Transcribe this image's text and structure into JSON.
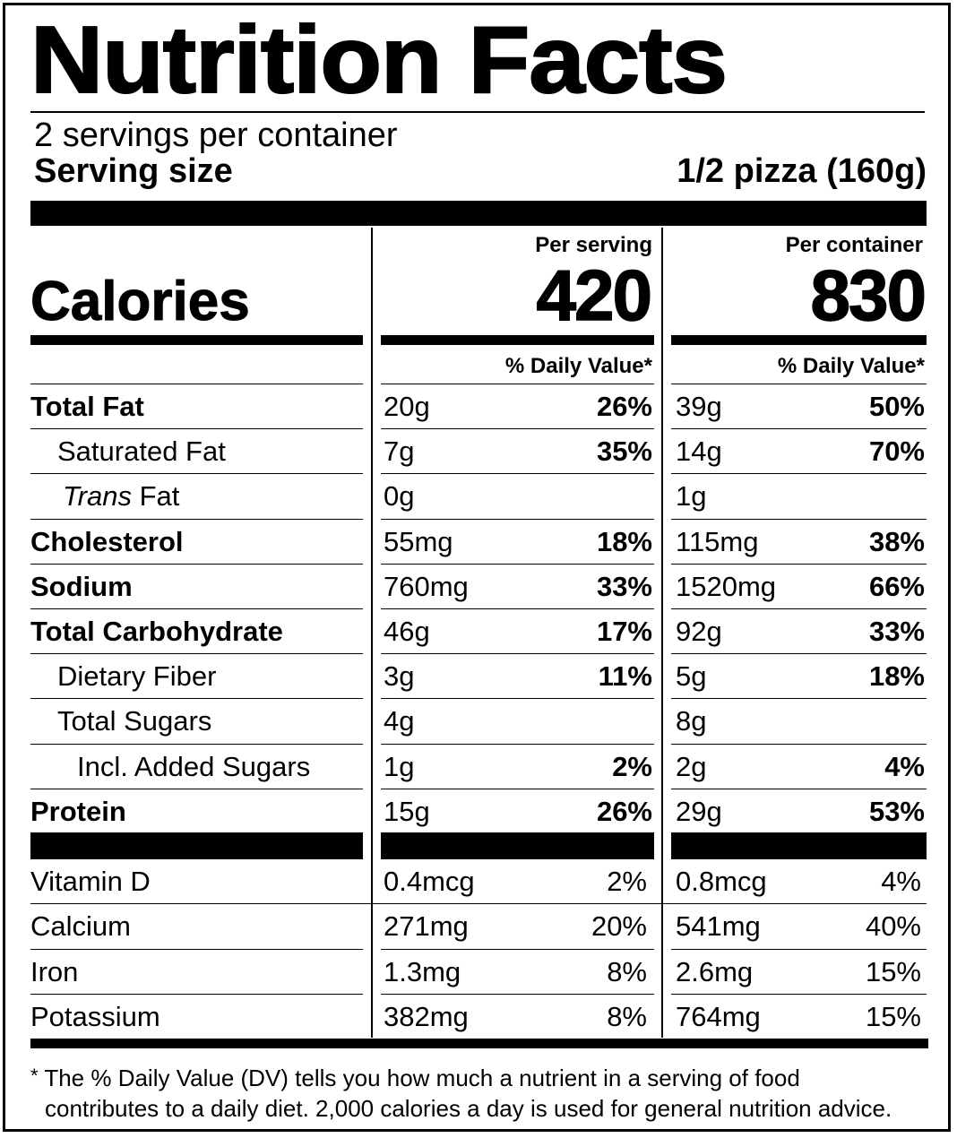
{
  "title": "Nutrition Facts",
  "servings_per_container": "2 servings per container",
  "serving_size_label": "Serving size",
  "serving_size_value": "1/2 pizza (160g)",
  "calories_label": "Calories",
  "per_serving": {
    "header": "Per serving",
    "calories": "420"
  },
  "per_container": {
    "header": "Per container",
    "calories": "830"
  },
  "daily_value_header": "% Daily Value*",
  "nutrients": [
    {
      "name": "Total Fat",
      "bold": true,
      "indent": 0,
      "serving_amount": "20g",
      "serving_dv": "26%",
      "container_amount": "39g",
      "container_dv": "50%"
    },
    {
      "name": "Saturated Fat",
      "bold": false,
      "indent": 1,
      "serving_amount": "7g",
      "serving_dv": "35%",
      "container_amount": "14g",
      "container_dv": "70%"
    },
    {
      "name_italic": "Trans",
      "name": " Fat",
      "bold": false,
      "indent": 1,
      "serving_amount": "0g",
      "serving_dv": "",
      "container_amount": "1g",
      "container_dv": ""
    },
    {
      "name": "Cholesterol",
      "bold": true,
      "indent": 0,
      "serving_amount": "55mg",
      "serving_dv": "18%",
      "container_amount": "115mg",
      "container_dv": "38%"
    },
    {
      "name": "Sodium",
      "bold": true,
      "indent": 0,
      "serving_amount": "760mg",
      "serving_dv": "33%",
      "container_amount": "1520mg",
      "container_dv": "66%"
    },
    {
      "name": "Total Carbohydrate",
      "bold": true,
      "indent": 0,
      "serving_amount": "46g",
      "serving_dv": "17%",
      "container_amount": "92g",
      "container_dv": "33%"
    },
    {
      "name": "Dietary Fiber",
      "bold": false,
      "indent": 1,
      "serving_amount": "3g",
      "serving_dv": "11%",
      "container_amount": "5g",
      "container_dv": "18%"
    },
    {
      "name": "Total Sugars",
      "bold": false,
      "indent": 1,
      "serving_amount": "4g",
      "serving_dv": "",
      "container_amount": "8g",
      "container_dv": ""
    },
    {
      "name": "Incl. Added Sugars",
      "bold": false,
      "indent": 2,
      "serving_amount": "1g",
      "serving_dv": "2%",
      "container_amount": "2g",
      "container_dv": "4%"
    },
    {
      "name": "Protein",
      "bold": true,
      "indent": 0,
      "serving_amount": "15g",
      "serving_dv": "26%",
      "container_amount": "29g",
      "container_dv": "53%"
    }
  ],
  "vitamins": [
    {
      "name": "Vitamin D",
      "serving_amount": "0.4mcg",
      "serving_dv": "2%",
      "container_amount": "0.8mcg",
      "container_dv": "4%"
    },
    {
      "name": "Calcium",
      "serving_amount": "271mg",
      "serving_dv": "20%",
      "container_amount": "541mg",
      "container_dv": "40%"
    },
    {
      "name": "Iron",
      "serving_amount": "1.3mg",
      "serving_dv": "8%",
      "container_amount": "2.6mg",
      "container_dv": "15%"
    },
    {
      "name": "Potassium",
      "serving_amount": "382mg",
      "serving_dv": "8%",
      "container_amount": "764mg",
      "container_dv": "15%"
    }
  ],
  "footnote": {
    "star": "*",
    "line1": "The % Daily Value (DV) tells you how much a nutrient in a serving of food",
    "line2": "contributes to a daily diet. 2,000 calories a day is used for general nutrition advice."
  }
}
